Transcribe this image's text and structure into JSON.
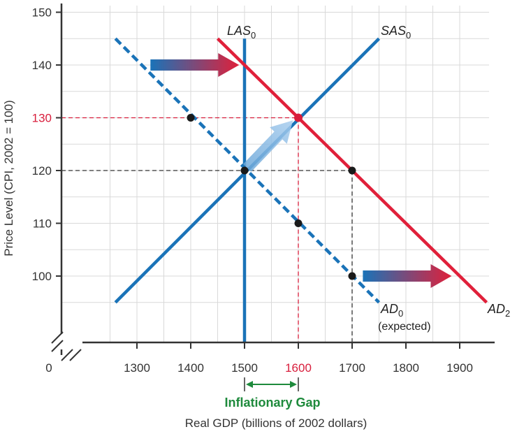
{
  "chart_data": {
    "type": "line",
    "title": "",
    "xlabel": "Real GDP (billions of 2002 dollars)",
    "ylabel": "Price Level (CPI, 2002 = 100)",
    "x_origin_label": "0",
    "xlim": [
      1200,
      1950
    ],
    "ylim": [
      90,
      150
    ],
    "x_ticks": [
      1300,
      1400,
      1500,
      1600,
      1700,
      1800,
      1900
    ],
    "y_ticks": [
      100,
      110,
      120,
      130,
      140,
      150
    ],
    "highlight_ticks": {
      "x": 1600,
      "y": 130
    },
    "grid": true,
    "colors": {
      "lras_sras": "#1a73b8",
      "ad2": "#e0203a",
      "highlight": "#d81e3c",
      "gap": "#1e8a3c",
      "text": "#333333",
      "grid": "#d9d9d9"
    },
    "series": [
      {
        "name": "LAS",
        "subscript": "0",
        "style": "solid",
        "color": "#1a73b8",
        "points": [
          [
            1500,
            90
          ],
          [
            1500,
            145
          ]
        ]
      },
      {
        "name": "SAS",
        "subscript": "0",
        "style": "solid",
        "color": "#1a73b8",
        "points": [
          [
            1260,
            95
          ],
          [
            1750,
            145
          ]
        ]
      },
      {
        "name": "AD",
        "subscript": "0",
        "note": "(expected)",
        "style": "dashed",
        "color": "#1a73b8",
        "points": [
          [
            1260,
            145
          ],
          [
            1750,
            95
          ]
        ]
      },
      {
        "name": "AD",
        "subscript": "2",
        "style": "solid",
        "color": "#e0203a",
        "points": [
          [
            1450,
            145
          ],
          [
            1950,
            95
          ]
        ]
      }
    ],
    "points": [
      {
        "x": 1400,
        "y": 130
      },
      {
        "x": 1500,
        "y": 120
      },
      {
        "x": 1600,
        "y": 110
      },
      {
        "x": 1700,
        "y": 100
      },
      {
        "x": 1700,
        "y": 120
      },
      {
        "x": 1600,
        "y": 130,
        "color": "#d81e3c"
      }
    ],
    "reference_lines": [
      {
        "from": [
          1200,
          130
        ],
        "to": [
          1600,
          130
        ],
        "color": "#d81e3c"
      },
      {
        "from": [
          1600,
          130
        ],
        "to": [
          1600,
          90
        ],
        "color": "#d81e3c"
      },
      {
        "from": [
          1200,
          120
        ],
        "to": [
          1700,
          120
        ],
        "color": "#333333"
      },
      {
        "from": [
          1700,
          120
        ],
        "to": [
          1700,
          90
        ],
        "color": "#333333"
      }
    ],
    "arrows": [
      {
        "from": [
          1325,
          140
        ],
        "to": [
          1490,
          140
        ]
      },
      {
        "from": [
          1505,
          120.5
        ],
        "to": [
          1590,
          129.5
        ]
      },
      {
        "from": [
          1720,
          100
        ],
        "to": [
          1885,
          100
        ]
      }
    ],
    "gap": {
      "label": "Inflationary Gap",
      "from": 1500,
      "to": 1600
    }
  }
}
